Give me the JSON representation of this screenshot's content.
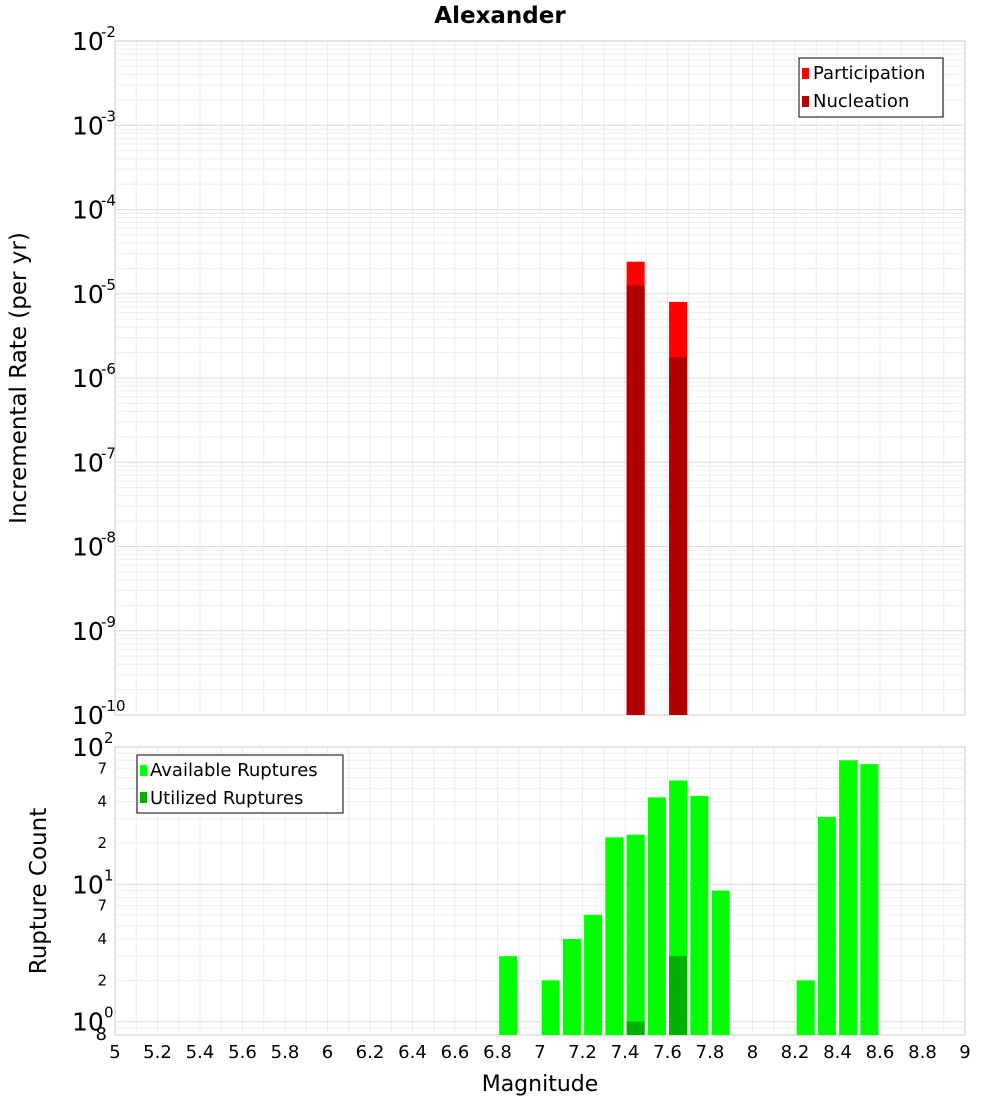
{
  "chart_data": [
    {
      "type": "bar",
      "title": "Alexander",
      "ylabel": "Incremental Rate (per yr)",
      "yscale": "log",
      "ylim": [
        1e-10,
        0.01
      ],
      "y_tick_exponents": [
        "-10",
        "-9",
        "-8",
        "-7",
        "-6",
        "-5",
        "-4",
        "-3",
        "-2"
      ],
      "y_tick_base": "10",
      "legend_position": "top-right",
      "series": [
        {
          "name": "Participation",
          "color": "#ff0000",
          "x": [
            7.45,
            7.65
          ],
          "values": [
            2.4e-05,
            8e-06
          ]
        },
        {
          "name": "Nucleation",
          "color": "#b00000",
          "x": [
            7.45,
            7.65
          ],
          "values": [
            1.25e-05,
            1.75e-06
          ]
        }
      ]
    },
    {
      "type": "bar",
      "ylabel": "Rupture Count",
      "xlabel": "Magnitude",
      "yscale": "log",
      "ylim": [
        0.8,
        100
      ],
      "xlim": [
        5,
        9
      ],
      "x_ticks": [
        "5",
        "5.2",
        "5.4",
        "5.6",
        "5.8",
        "6",
        "6.2",
        "6.4",
        "6.6",
        "6.8",
        "7",
        "7.2",
        "7.4",
        "7.6",
        "7.8",
        "8",
        "8.2",
        "8.4",
        "8.6",
        "8.8",
        "9"
      ],
      "y_major_ticks": [
        {
          "base": "10",
          "exp": "0"
        },
        {
          "base": "10",
          "exp": "1"
        },
        {
          "base": "10",
          "exp": "2"
        }
      ],
      "y_minor_ticks": [
        "8",
        "2",
        "4",
        "7",
        "2",
        "4",
        "7"
      ],
      "legend_position": "top-left",
      "series": [
        {
          "name": "Available Ruptures",
          "color": "#00ff00",
          "x": [
            6.85,
            7.05,
            7.15,
            7.25,
            7.35,
            7.45,
            7.55,
            7.65,
            7.75,
            7.85,
            8.25,
            8.35,
            8.45,
            8.55
          ],
          "values": [
            3,
            2,
            4,
            6,
            22,
            23,
            43,
            57,
            44,
            9,
            2,
            31,
            80,
            75
          ]
        },
        {
          "name": "Utilized Ruptures",
          "color": "#00b000",
          "x": [
            7.45,
            7.65
          ],
          "values": [
            1,
            3
          ]
        }
      ]
    }
  ]
}
